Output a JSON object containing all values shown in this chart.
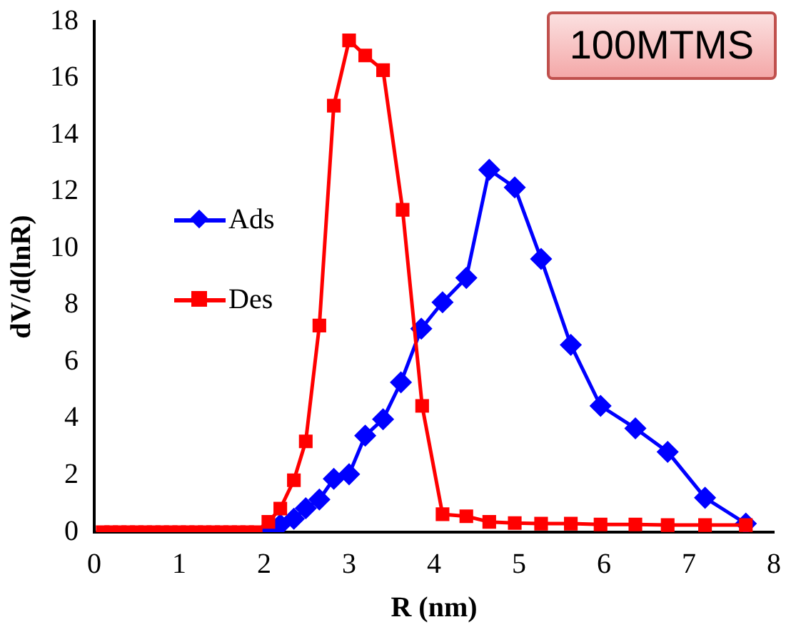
{
  "chart_data": {
    "type": "line",
    "xlabel": "R (nm)",
    "ylabel": "dV/d(lnR)",
    "annotations": [
      "100MTMS"
    ],
    "xlim": [
      0,
      8
    ],
    "xticks": [
      0,
      1,
      2,
      3,
      4,
      5,
      6,
      7,
      8
    ],
    "ylim": [
      0,
      18
    ],
    "yticks": [
      0,
      2,
      4,
      6,
      8,
      10,
      12,
      14,
      16,
      18
    ],
    "grid": false,
    "legend": "left",
    "series": [
      {
        "name": "Ads",
        "color": "#0000ff",
        "marker": "diamond",
        "x": [
          2.05,
          2.19,
          2.35,
          2.49,
          2.65,
          2.82,
          3.0,
          3.19,
          3.4,
          3.61,
          3.85,
          4.1,
          4.38,
          4.65,
          4.95,
          5.26,
          5.61,
          5.96,
          6.37,
          6.75,
          7.19,
          7.67
        ],
        "values": [
          0.1,
          0.26,
          0.47,
          0.84,
          1.15,
          1.88,
          2.04,
          3.4,
          3.98,
          5.28,
          7.17,
          8.1,
          8.96,
          12.77,
          12.15,
          9.63,
          6.6,
          4.45,
          3.66,
          2.83,
          1.21,
          0.3
        ]
      },
      {
        "name": "Des",
        "color": "#ff0000",
        "marker": "square",
        "x": [
          0.1,
          0.2,
          0.3,
          0.4,
          0.5,
          0.6,
          0.7,
          0.8,
          0.9,
          1.0,
          1.1,
          1.2,
          1.3,
          1.4,
          1.5,
          1.6,
          1.7,
          1.8,
          1.9,
          2.05,
          2.19,
          2.35,
          2.49,
          2.65,
          2.82,
          3.0,
          3.19,
          3.4,
          3.63,
          3.86,
          4.1,
          4.38,
          4.65,
          4.95,
          5.26,
          5.61,
          5.96,
          6.37,
          6.75,
          7.19,
          7.67
        ],
        "values": [
          0,
          0,
          0,
          0,
          0,
          0,
          0,
          0,
          0,
          0,
          0,
          0,
          0,
          0,
          0,
          0,
          0,
          0,
          0,
          0.36,
          0.83,
          1.83,
          3.2,
          7.28,
          15.03,
          17.33,
          16.8,
          16.28,
          11.36,
          4.45,
          0.63,
          0.56,
          0.36,
          0.32,
          0.3,
          0.3,
          0.27,
          0.27,
          0.25,
          0.25,
          0.25
        ]
      }
    ]
  }
}
